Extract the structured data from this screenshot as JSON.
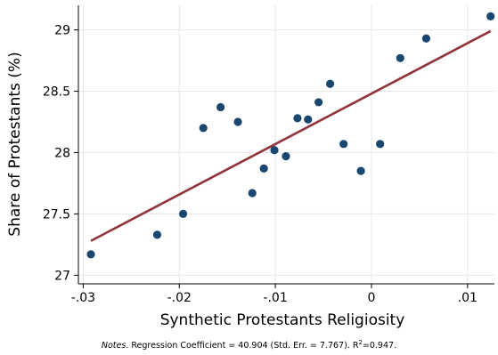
{
  "chart_data": {
    "type": "scatter",
    "title": "",
    "xlabel": "Synthetic Protestants Religiosity",
    "ylabel": "Share of Protestants (%)",
    "xlim": [
      -0.0305,
      0.0128
    ],
    "ylim": [
      26.93,
      29.2
    ],
    "x_ticks": [
      {
        "value": -0.03,
        "label": "-.03"
      },
      {
        "value": -0.02,
        "label": "-.02"
      },
      {
        "value": -0.01,
        "label": "-.01"
      },
      {
        "value": 0,
        "label": "0"
      },
      {
        "value": 0.01,
        "label": ".01"
      }
    ],
    "y_ticks": [
      {
        "value": 27,
        "label": "27"
      },
      {
        "value": 27.5,
        "label": "27.5"
      },
      {
        "value": 28,
        "label": "28"
      },
      {
        "value": 28.5,
        "label": "28.5"
      },
      {
        "value": 29,
        "label": "29"
      }
    ],
    "grid": {
      "horizontal": true,
      "vertical": true
    },
    "points": [
      {
        "x": -0.0292,
        "y": 27.17
      },
      {
        "x": -0.0223,
        "y": 27.33
      },
      {
        "x": -0.0196,
        "y": 27.5
      },
      {
        "x": -0.0175,
        "y": 28.2
      },
      {
        "x": -0.0157,
        "y": 28.37
      },
      {
        "x": -0.0139,
        "y": 28.25
      },
      {
        "x": -0.0124,
        "y": 27.67
      },
      {
        "x": -0.0112,
        "y": 27.87
      },
      {
        "x": -0.0101,
        "y": 28.02
      },
      {
        "x": -0.0089,
        "y": 27.97
      },
      {
        "x": -0.0077,
        "y": 28.28
      },
      {
        "x": -0.0066,
        "y": 28.27
      },
      {
        "x": -0.0055,
        "y": 28.41
      },
      {
        "x": -0.0043,
        "y": 28.56
      },
      {
        "x": -0.0029,
        "y": 28.07
      },
      {
        "x": -0.0011,
        "y": 27.85
      },
      {
        "x": 0.0009,
        "y": 28.07
      },
      {
        "x": 0.003,
        "y": 28.77
      },
      {
        "x": 0.0057,
        "y": 28.93
      },
      {
        "x": 0.0124,
        "y": 29.11
      }
    ],
    "fit_line": {
      "x": [
        -0.0292,
        0.0124
      ],
      "y": [
        27.28,
        28.99
      ]
    },
    "colors": {
      "points": "#1a476f",
      "fit_line": "#90353b",
      "grid": "#e6e6e6",
      "axis": "#000000"
    }
  },
  "notes": {
    "label": "Notes",
    "text": ". Regression Coefficient = 40.904 (Std. Err. = 7.767). R",
    "superscript": "2",
    "tail": "=0.947."
  }
}
